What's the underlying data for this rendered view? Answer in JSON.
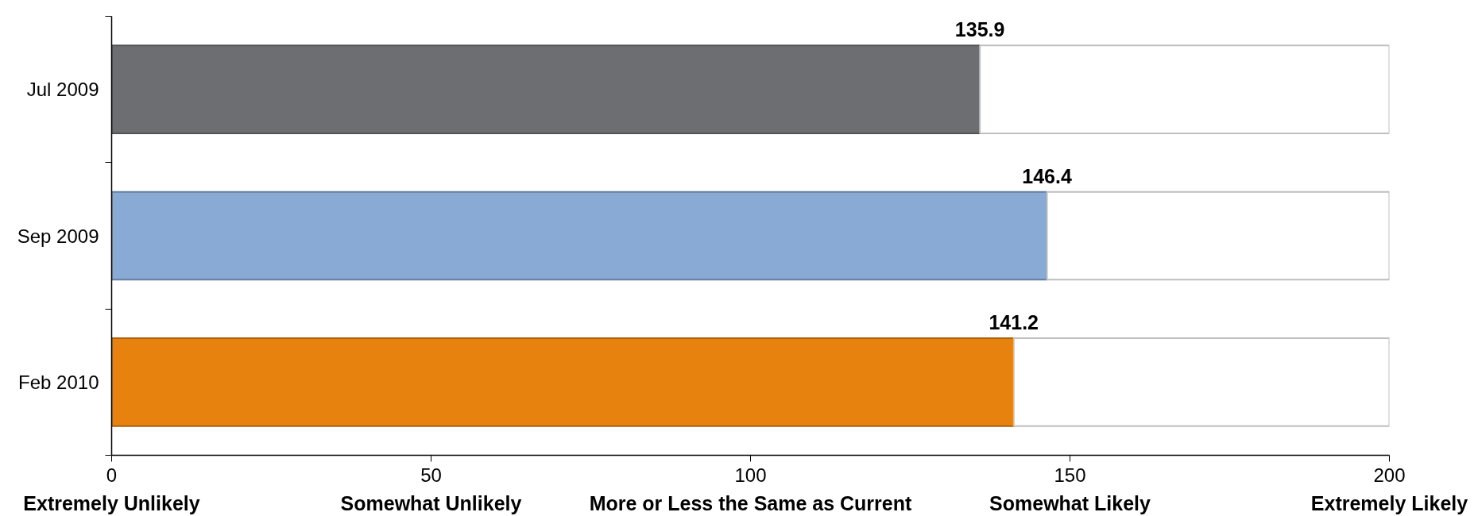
{
  "chart_data": {
    "type": "bar",
    "orientation": "horizontal",
    "stacked": true,
    "categories": [
      "Jul 2009",
      "Sep 2009",
      "Feb 2010"
    ],
    "series": [
      {
        "colors": [
          "#6d6e71",
          "#88aad5",
          "#e8820f"
        ],
        "values": [
          135.9,
          146.4,
          141.2
        ],
        "value_labels": [
          "135.9",
          "146.4",
          "141.2"
        ]
      },
      {
        "color": "#ffffff",
        "values": [
          64.1,
          53.6,
          58.8
        ]
      }
    ],
    "xlim": [
      0,
      200
    ],
    "xticks": [
      0,
      50,
      100,
      150,
      200
    ],
    "annotations": [
      "Extremely Unlikely",
      "Somewhat Unlikely",
      "More or Less the Same as Current",
      "Somewhat Likely",
      "Extremely Likely"
    ],
    "grid": false
  }
}
